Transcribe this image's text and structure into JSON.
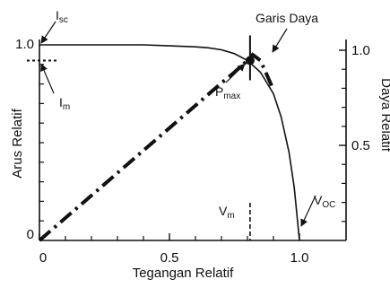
{
  "chart_data": {
    "type": "line",
    "xlabel": "Tegangan Relatif",
    "ylabel_left": "Arus Relatif",
    "ylabel_right": "Daya Relatif",
    "xlim": [
      0,
      1.1
    ],
    "ylim": [
      0,
      1.0
    ],
    "x_ticks": [
      {
        "value": 0,
        "label": "0"
      },
      {
        "value": 0.5,
        "label": "0.5"
      },
      {
        "value": 1.0,
        "label": "1.0"
      }
    ],
    "y_left_ticks": [
      {
        "value": 0,
        "label": "0"
      },
      {
        "value": 1.0,
        "label": "1.0"
      }
    ],
    "y_right_ticks": [
      {
        "value": 0.5,
        "label": "0.5"
      },
      {
        "value": 1.0,
        "label": "1.0"
      }
    ],
    "series": [
      {
        "key": "current",
        "x": [
          0,
          0.2,
          0.4,
          0.5,
          0.6,
          0.65,
          0.7,
          0.75,
          0.8,
          0.85,
          0.9,
          0.93,
          0.96,
          0.98,
          1.0
        ],
        "y": [
          1.0,
          1.0,
          1.0,
          0.995,
          0.99,
          0.985,
          0.975,
          0.955,
          0.92,
          0.86,
          0.75,
          0.63,
          0.45,
          0.27,
          0.0
        ]
      },
      {
        "key": "power",
        "x": [
          0,
          0.1,
          0.2,
          0.3,
          0.4,
          0.5,
          0.6,
          0.7,
          0.75,
          0.8,
          0.82,
          0.85,
          0.9
        ],
        "y": [
          0.0,
          0.115,
          0.23,
          0.345,
          0.46,
          0.575,
          0.69,
          0.805,
          0.86,
          0.92,
          0.95,
          0.92,
          0.77
        ]
      }
    ],
    "points": {
      "pmax": {
        "x": 0.81,
        "y": 0.92
      },
      "vm": 0.81,
      "im": 0.92,
      "isc": 1.0,
      "voc": 1.0
    },
    "annotations": {
      "isc": {
        "main": "I",
        "sub": "sc"
      },
      "im": {
        "main": "I",
        "sub": "m"
      },
      "pmax": {
        "main": "P",
        "sub": "max"
      },
      "vm": {
        "main": "V",
        "sub": "m"
      },
      "voc": {
        "main": "V",
        "sub": "OC"
      },
      "garis_daya": "Garis Daya"
    }
  }
}
